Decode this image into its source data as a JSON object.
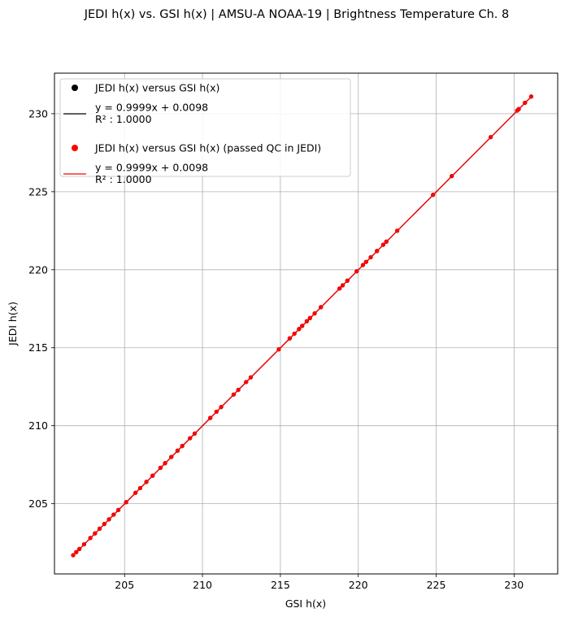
{
  "chart_data": {
    "type": "scatter",
    "title": "JEDI h(x) vs. GSI h(x) | AMSU-A NOAA-19 | Brightness Temperature Ch. 8",
    "xlabel": "GSI h(x)",
    "ylabel": "JEDI h(x)",
    "xlim": [
      200.5,
      232.8
    ],
    "ylim": [
      200.5,
      232.6
    ],
    "xticks": [
      205,
      210,
      215,
      220,
      225,
      230
    ],
    "yticks": [
      205,
      210,
      215,
      220,
      225,
      230
    ],
    "grid": true,
    "legend_position": "upper-left",
    "series": [
      {
        "name": "JEDI h(x) versus GSI h(x)",
        "kind": "scatter",
        "color": "#000000",
        "x": [
          201.7,
          201.9,
          202.1,
          202.4,
          202.8,
          203.1,
          203.4,
          203.7,
          204.0,
          204.3,
          204.6,
          205.1,
          205.7,
          206.0,
          206.4,
          206.8,
          207.3,
          207.6,
          208.0,
          208.4,
          208.7,
          209.2,
          209.5,
          210.5,
          210.9,
          211.2,
          212.0,
          212.3,
          212.8,
          213.1,
          214.9,
          215.6,
          215.9,
          216.2,
          216.4,
          216.7,
          216.9,
          217.2,
          217.6,
          218.8,
          219.0,
          219.3,
          219.9,
          220.3,
          220.5,
          220.8,
          221.2,
          221.6,
          221.8,
          222.5,
          224.8,
          226.0,
          228.5,
          230.2,
          230.3,
          230.7,
          231.1
        ],
        "y": [
          201.7,
          201.9,
          202.1,
          202.4,
          202.8,
          203.1,
          203.4,
          203.7,
          204.0,
          204.3,
          204.6,
          205.1,
          205.7,
          206.0,
          206.4,
          206.8,
          207.3,
          207.6,
          208.0,
          208.4,
          208.7,
          209.2,
          209.5,
          210.5,
          210.9,
          211.2,
          212.0,
          212.3,
          212.8,
          213.1,
          214.9,
          215.6,
          215.9,
          216.2,
          216.4,
          216.7,
          216.9,
          217.2,
          217.6,
          218.8,
          219.0,
          219.3,
          219.9,
          220.3,
          220.5,
          220.8,
          221.2,
          221.6,
          221.8,
          222.5,
          224.8,
          226.0,
          228.5,
          230.2,
          230.3,
          230.7,
          231.1
        ]
      },
      {
        "name": "y = 0.9999x + 0.0098\nR² : 1.0000",
        "kind": "line",
        "color": "#000000",
        "slope": 0.9999,
        "intercept": 0.0098,
        "x": [
          201.7,
          231.1
        ]
      },
      {
        "name": "JEDI h(x) versus GSI h(x) (passed QC in JEDI)",
        "kind": "scatter",
        "color": "#ff0000",
        "x": [
          201.7,
          201.9,
          202.1,
          202.4,
          202.8,
          203.1,
          203.4,
          203.7,
          204.0,
          204.3,
          204.6,
          205.1,
          205.7,
          206.0,
          206.4,
          206.8,
          207.3,
          207.6,
          208.0,
          208.4,
          208.7,
          209.2,
          209.5,
          210.5,
          210.9,
          211.2,
          212.0,
          212.3,
          212.8,
          213.1,
          214.9,
          215.6,
          215.9,
          216.2,
          216.4,
          216.7,
          216.9,
          217.2,
          217.6,
          218.8,
          219.0,
          219.3,
          219.9,
          220.3,
          220.5,
          220.8,
          221.2,
          221.6,
          221.8,
          222.5,
          224.8,
          226.0,
          228.5,
          230.2,
          230.3,
          230.7,
          231.1
        ],
        "y": [
          201.7,
          201.9,
          202.1,
          202.4,
          202.8,
          203.1,
          203.4,
          203.7,
          204.0,
          204.3,
          204.6,
          205.1,
          205.7,
          206.0,
          206.4,
          206.8,
          207.3,
          207.6,
          208.0,
          208.4,
          208.7,
          209.2,
          209.5,
          210.5,
          210.9,
          211.2,
          212.0,
          212.3,
          212.8,
          213.1,
          214.9,
          215.6,
          215.9,
          216.2,
          216.4,
          216.7,
          216.9,
          217.2,
          217.6,
          218.8,
          219.0,
          219.3,
          219.9,
          220.3,
          220.5,
          220.8,
          221.2,
          221.6,
          221.8,
          222.5,
          224.8,
          226.0,
          228.5,
          230.2,
          230.3,
          230.7,
          231.1
        ]
      },
      {
        "name": "y = 0.9999x + 0.0098\nR² : 1.0000",
        "kind": "line",
        "color": "#ff0000",
        "slope": 0.9999,
        "intercept": 0.0098,
        "x": [
          201.7,
          231.1
        ]
      }
    ]
  }
}
